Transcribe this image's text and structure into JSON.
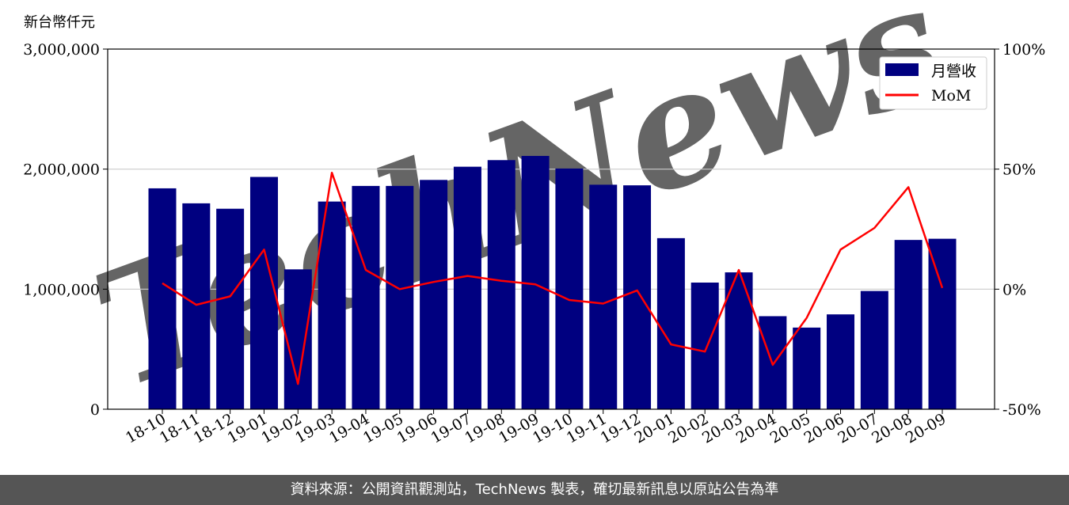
{
  "footer": {
    "text": "資料來源：公開資訊觀測站，TechNews 製表，確切最新訊息以原站公告為準"
  },
  "colors": {
    "bar": "#000080",
    "line": "#ff0000",
    "grid": "#cccccc",
    "footer_bg": "#555555",
    "watermark": "#f2dede"
  },
  "chart_data": {
    "type": "bar",
    "unit_label": "新台幣仟元",
    "categories": [
      "18-10",
      "18-11",
      "18-12",
      "19-01",
      "19-02",
      "19-03",
      "19-04",
      "19-05",
      "19-06",
      "19-07",
      "19-08",
      "19-09",
      "19-10",
      "19-11",
      "19-12",
      "20-01",
      "20-02",
      "20-03",
      "20-04",
      "20-05",
      "20-06",
      "20-07",
      "20-08",
      "20-09"
    ],
    "series": [
      {
        "name": "月營收",
        "type": "bar",
        "axis": "left",
        "values": [
          1840000,
          1715000,
          1670000,
          1935000,
          1165000,
          1730000,
          1860000,
          1860000,
          1910000,
          2020000,
          2075000,
          2110000,
          2005000,
          1870000,
          1865000,
          1425000,
          1055000,
          1140000,
          775000,
          680000,
          790000,
          985000,
          1410000,
          1420000
        ]
      },
      {
        "name": "MoM",
        "type": "line",
        "axis": "right",
        "values": [
          2.5,
          -6.5,
          -3,
          16.5,
          -39.5,
          48.5,
          8,
          0,
          3,
          5.5,
          3.5,
          2,
          -4.5,
          -6,
          -0.5,
          -23,
          -26,
          8,
          -31.5,
          -12,
          16.5,
          25.5,
          42.5,
          0.5
        ]
      }
    ],
    "left_axis": {
      "ylim": [
        0,
        3000000
      ],
      "ticks": [
        "0",
        "1,000,000",
        "2,000,000",
        "3,000,000"
      ]
    },
    "right_axis": {
      "ylim": [
        -50,
        100
      ],
      "ticks": [
        "-50%",
        "0%",
        "50%",
        "100%"
      ]
    },
    "grid": "horizontal",
    "legend": "top-right",
    "watermark": "TechNews"
  }
}
